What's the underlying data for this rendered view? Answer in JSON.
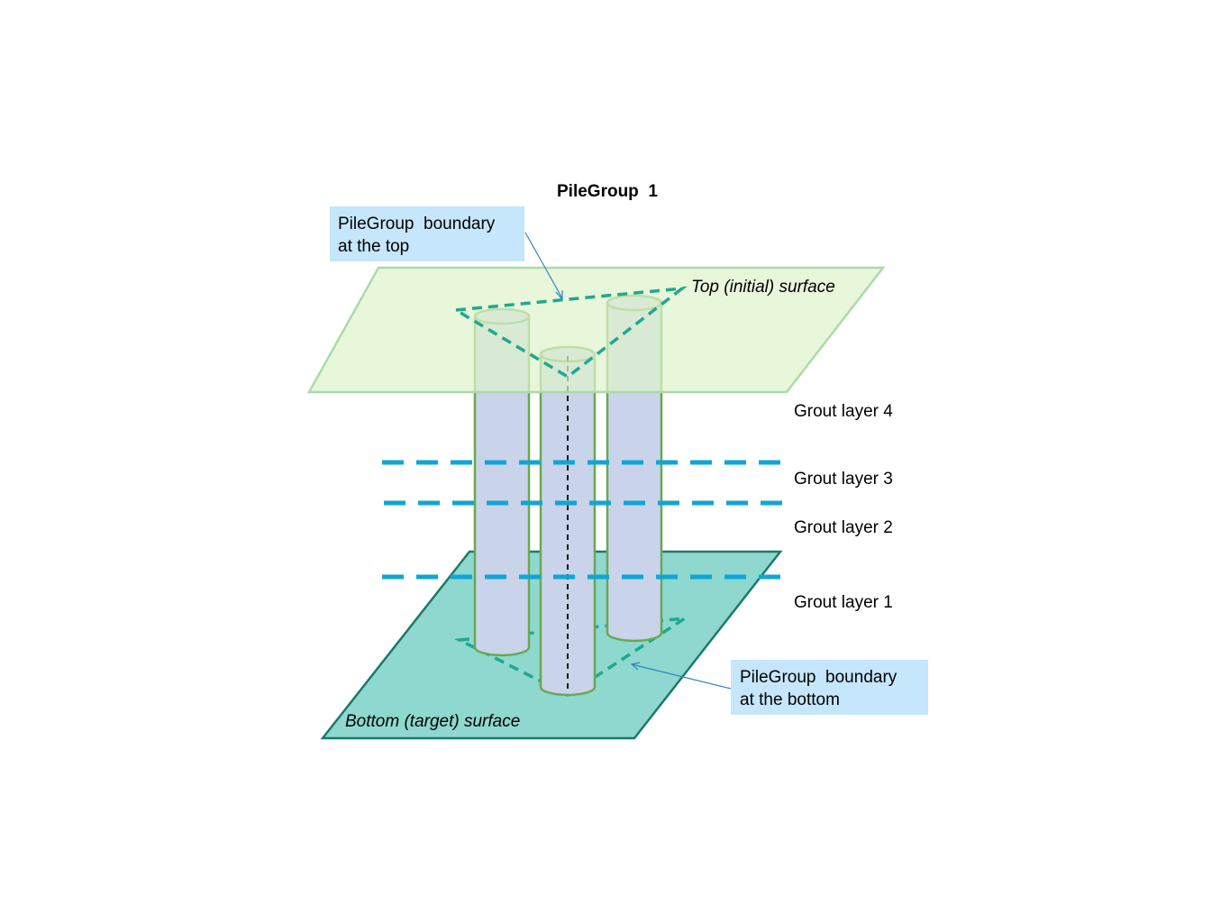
{
  "title": "PileGroup  1",
  "surfaces": {
    "top": "Top (initial) surface",
    "bottom": "Bottom (target) surface"
  },
  "grout_layers": [
    "Grout layer 1",
    "Grout layer 2",
    "Grout layer 3",
    "Grout layer 4"
  ],
  "callouts": {
    "top_boundary": {
      "line1": "PileGroup  boundary",
      "line2": "at the top"
    },
    "bottom_boundary": {
      "line1": "PileGroup  boundary",
      "line2": "at the bottom"
    }
  },
  "colors": {
    "top_surface_fill": "#e2f3d0",
    "top_surface_stroke": "#a9dba9",
    "bottom_surface_fill": "#8ed8cf",
    "bottom_surface_stroke": "#1a7a6a",
    "pile_fill": "#c9d3ea",
    "pile_stroke": "#6aa84f",
    "boundary_dash": "#1fa88f",
    "grout_dash": "#11a5d6",
    "callout_fill": "#c5e6fb",
    "callout_pointer": "#2e86c1"
  }
}
